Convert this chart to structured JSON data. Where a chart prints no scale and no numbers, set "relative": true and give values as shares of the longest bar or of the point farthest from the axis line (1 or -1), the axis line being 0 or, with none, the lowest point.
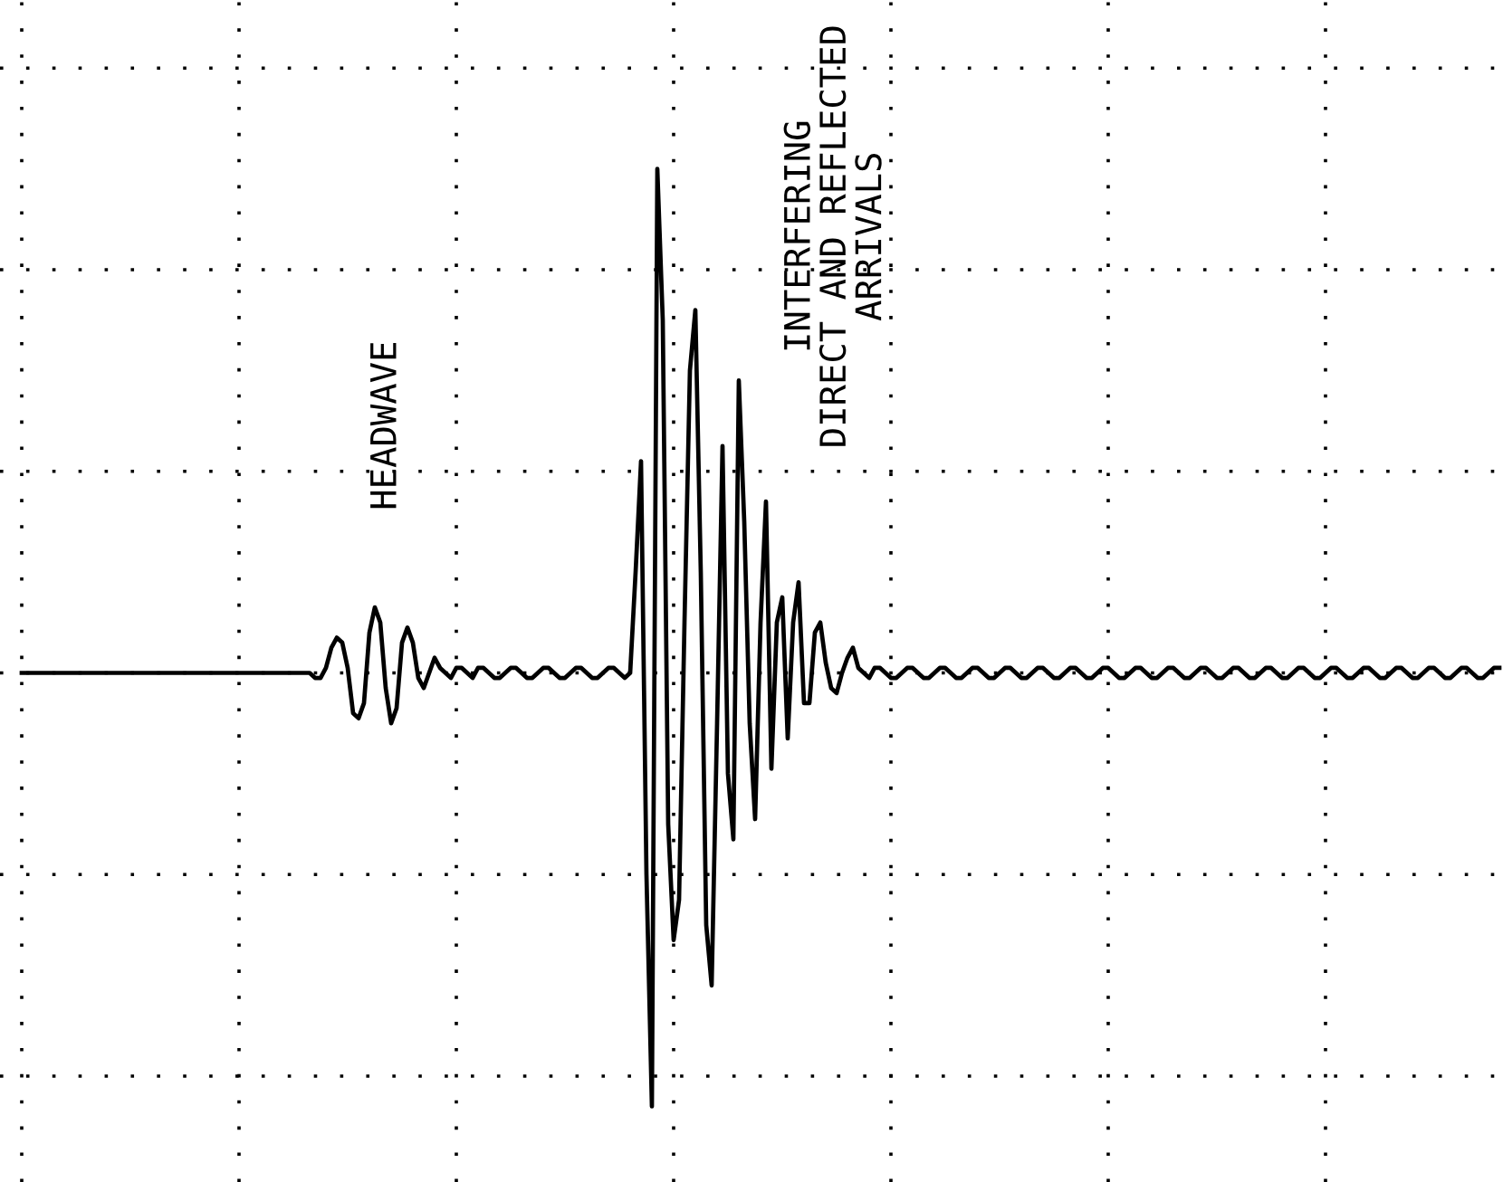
{
  "chart_data": {
    "type": "line",
    "relative": true,
    "grid": true,
    "line_style": "solid",
    "marker": "none",
    "categories": [
      null,
      null,
      null,
      null,
      null,
      null,
      null,
      null,
      null,
      null,
      null,
      null,
      null,
      null,
      null,
      null,
      null,
      null,
      null,
      null,
      null,
      null,
      null,
      null,
      null,
      null,
      null,
      null,
      null,
      null,
      null,
      null,
      null,
      null,
      null,
      null,
      null,
      null,
      null,
      null,
      null,
      null,
      null,
      null,
      null,
      null,
      null,
      null,
      null,
      null,
      null,
      null,
      null,
      null,
      null,
      null,
      null,
      null,
      null,
      null,
      null,
      null,
      null,
      null,
      null,
      null,
      null,
      null,
      null,
      null,
      null,
      null,
      null,
      null,
      null,
      null,
      null,
      null,
      null,
      null,
      null,
      null,
      null,
      null,
      null,
      null,
      null,
      null,
      null,
      null,
      null,
      null,
      null,
      null,
      null,
      null,
      null,
      null,
      null,
      null,
      null,
      null,
      null,
      null,
      null,
      null,
      null,
      null,
      null,
      null,
      null,
      null,
      null,
      null,
      null,
      null,
      null,
      null,
      null,
      null,
      null,
      null,
      null,
      null,
      null,
      null,
      null,
      null,
      null,
      null,
      null,
      null,
      null,
      null,
      null,
      null,
      null,
      null,
      null,
      null,
      null,
      null,
      null,
      null,
      null,
      null,
      null,
      null,
      null,
      null,
      null,
      null,
      null,
      null,
      null,
      null,
      null,
      null,
      null,
      null,
      null,
      null,
      null,
      null,
      null,
      null,
      null,
      null,
      null,
      null,
      null,
      null,
      null,
      null,
      null,
      null,
      null,
      null,
      null,
      null,
      null,
      null,
      null,
      null,
      null,
      null,
      null,
      null,
      null,
      null,
      null,
      null,
      null,
      null,
      null,
      null,
      null,
      null,
      null,
      null,
      null,
      null,
      null,
      null,
      null,
      null,
      null,
      null,
      null,
      null,
      null,
      null,
      null,
      null,
      null,
      null,
      null,
      null,
      null,
      null,
      null,
      null,
      null,
      null,
      null,
      null,
      null,
      null,
      null,
      null,
      null,
      null,
      null,
      null,
      null,
      null,
      null,
      null,
      null,
      null,
      null,
      null,
      null,
      null,
      null,
      null,
      null,
      null,
      null,
      null,
      null,
      null,
      null,
      null,
      null,
      null,
      null,
      null,
      null,
      null,
      null,
      null,
      null,
      null,
      null,
      null,
      null,
      null,
      null,
      null,
      null,
      null,
      null
    ],
    "series": [
      {
        "color": "#000000",
        "values": [
          0,
          0,
          0,
          0,
          0,
          0,
          0,
          0,
          0,
          0,
          0,
          0,
          0,
          0,
          0,
          0,
          0,
          0,
          0,
          0,
          0,
          0,
          0,
          0,
          0,
          0,
          0,
          0,
          0,
          0,
          0,
          0,
          0,
          0,
          0,
          0,
          0,
          0,
          0,
          0,
          0,
          0,
          0,
          0,
          0,
          0,
          0,
          0,
          0,
          0,
          0,
          0,
          0,
          0,
          -0.01,
          -0.01,
          0.01,
          0.05,
          0.07,
          0.06,
          0.01,
          -0.08,
          -0.09,
          -0.06,
          0.08,
          0.13,
          0.1,
          -0.03,
          -0.1,
          -0.07,
          0.06,
          0.09,
          0.06,
          -0.01,
          -0.03,
          0,
          0.03,
          0.01,
          0,
          -0.01,
          0.01,
          0.01,
          0,
          -0.01,
          0.01,
          0.01,
          0,
          -0.01,
          -0.01,
          0,
          0.01,
          0.01,
          0,
          -0.01,
          -0.01,
          0,
          0.01,
          0.01,
          0,
          -0.01,
          -0.01,
          0,
          0.01,
          0.01,
          0,
          -0.01,
          -0.01,
          0,
          0.01,
          0.01,
          0,
          -0.01,
          0,
          0.2,
          0.42,
          -0.4,
          -0.86,
          1.0,
          0.7,
          -0.3,
          -0.53,
          -0.45,
          0.1,
          0.6,
          0.72,
          0.2,
          -0.5,
          -0.62,
          -0.1,
          0.45,
          -0.2,
          -0.33,
          0.58,
          0.3,
          -0.1,
          -0.29,
          0.1,
          0.34,
          -0.19,
          0.1,
          0.15,
          -0.13,
          0.1,
          0.18,
          -0.06,
          -0.06,
          0.08,
          0.1,
          0.02,
          -0.03,
          -0.04,
          0,
          0.03,
          0.05,
          0.01,
          0,
          -0.01,
          0.01,
          0.01,
          0,
          -0.01,
          -0.01,
          0,
          0.01,
          0.01,
          0,
          -0.01,
          -0.01,
          0,
          0.01,
          0.01,
          0,
          -0.01,
          -0.01,
          0,
          0.01,
          0.01,
          0,
          -0.01,
          -0.01,
          0,
          0.01,
          0.01,
          0,
          -0.01,
          -0.01,
          0,
          0.01,
          0.01,
          0,
          -0.01,
          -0.01,
          0,
          0.01,
          0.01,
          0,
          -0.01,
          -0.01,
          0,
          0.01,
          0.01,
          0,
          -0.01,
          -0.01,
          0,
          0.01,
          0.01,
          0,
          -0.01,
          -0.01,
          0,
          0.01,
          0.01,
          0,
          -0.01,
          -0.01,
          0,
          0.01,
          0.01,
          0,
          -0.01,
          -0.01,
          0,
          0.01,
          0.01,
          0,
          -0.01,
          -0.01,
          0,
          0.01,
          0.01,
          0,
          -0.01,
          -0.01,
          0,
          0.01,
          0.01,
          0,
          -0.01,
          -0.01,
          0,
          0.01,
          0.01,
          0,
          -0.01,
          -0.01,
          0,
          0.01,
          0.01,
          0,
          -0.01,
          -0.01,
          0,
          0.01,
          0.01,
          0,
          -0.01,
          -0.01,
          0,
          0.01,
          0.01,
          0,
          -0.01,
          -0.01,
          0,
          0.01,
          0.01,
          0,
          -0.01,
          -0.01,
          0,
          0.01,
          0.01
        ]
      }
    ],
    "annotations": [
      "HEADWAVE",
      "INTERFERING\nDIRECT AND REFLECTED\nARRIVALS"
    ]
  }
}
